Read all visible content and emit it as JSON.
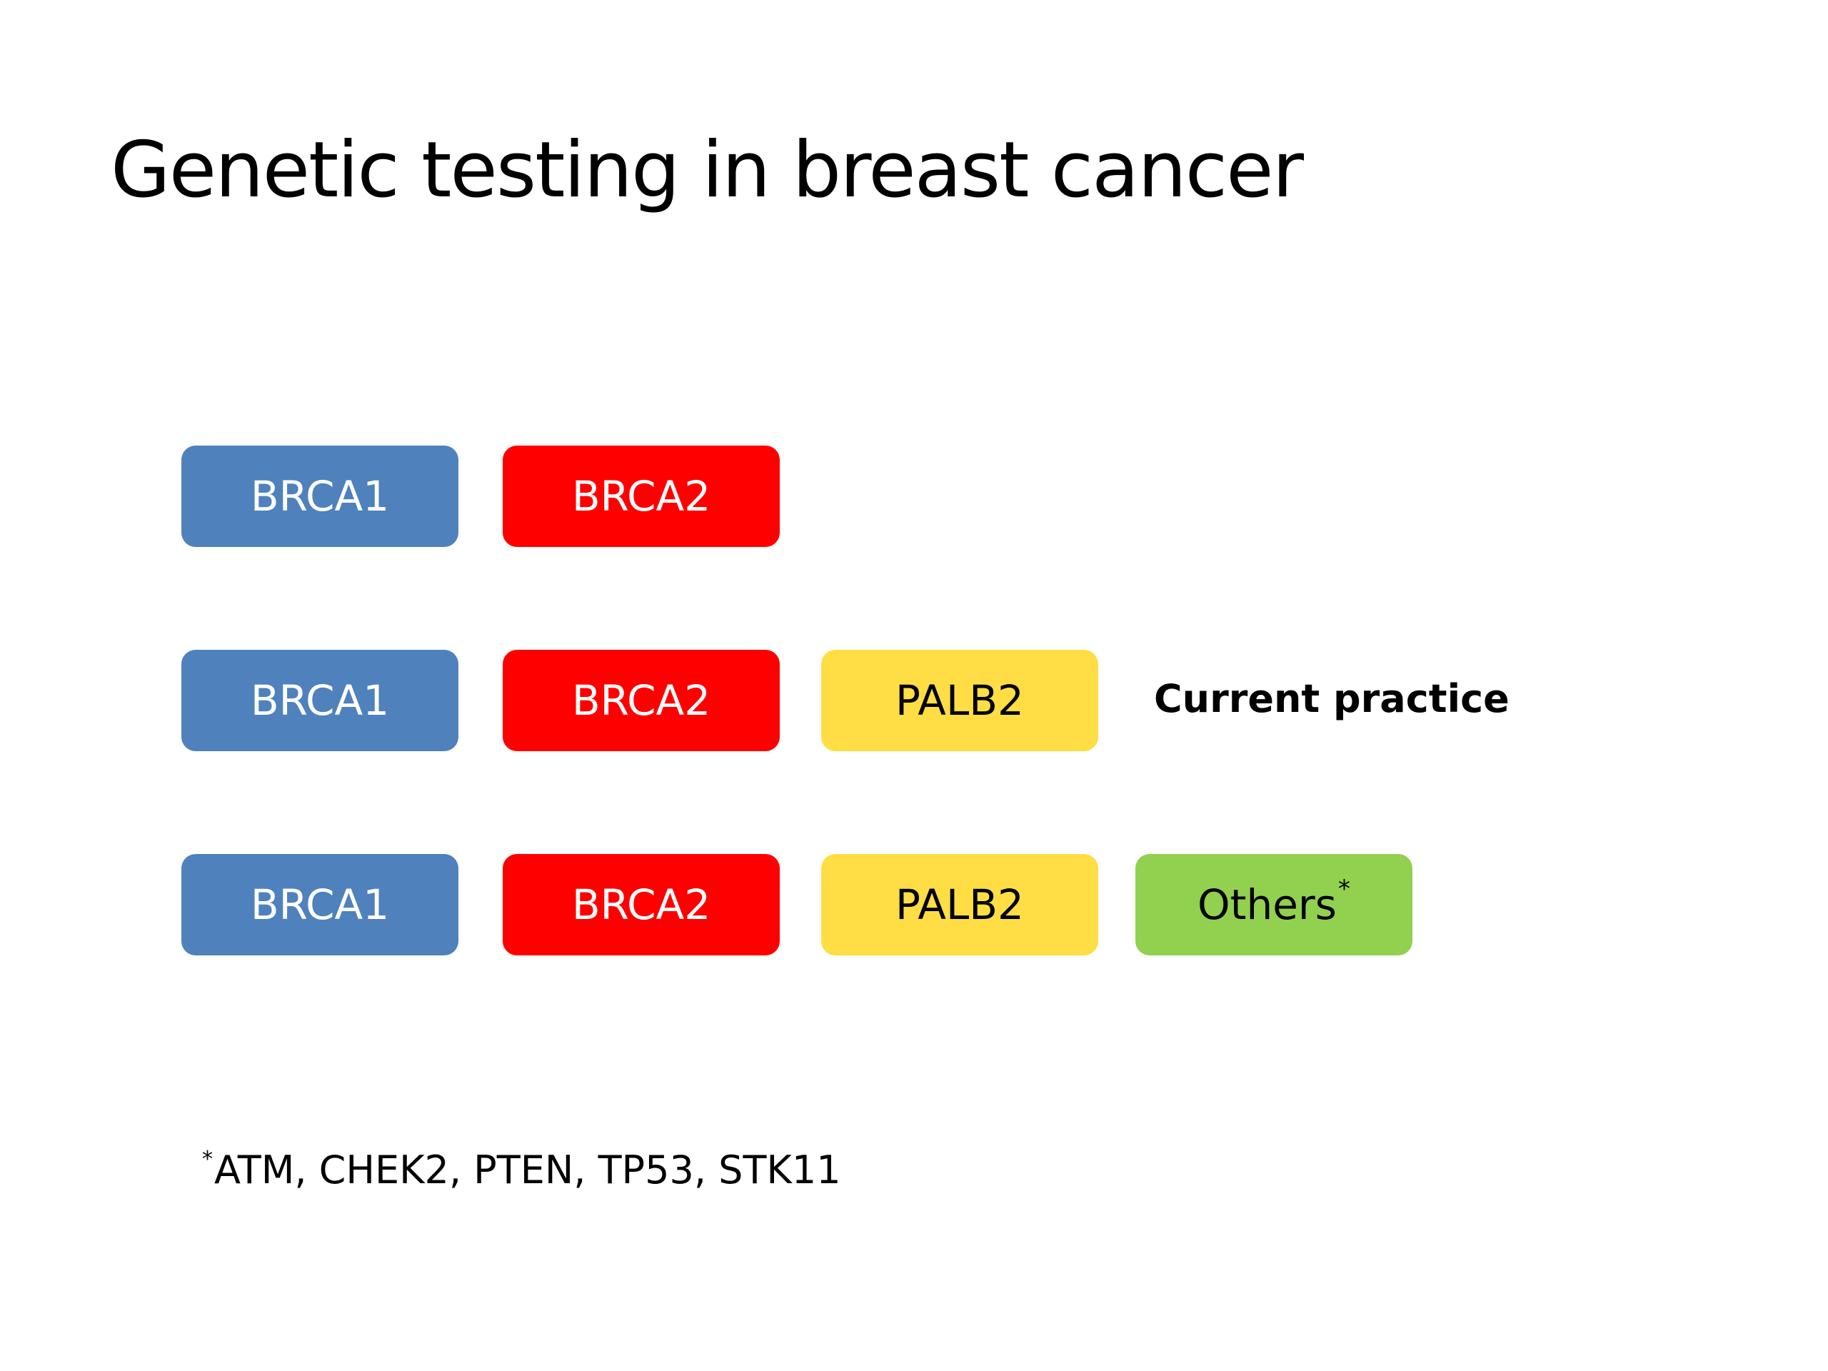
{
  "slide": {
    "title": "Genetic testing in breast cancer"
  },
  "rows": [
    {
      "genes": [
        {
          "label": "BRCA1"
        },
        {
          "label": "BRCA2"
        }
      ]
    },
    {
      "genes": [
        {
          "label": "BRCA1"
        },
        {
          "label": "BRCA2"
        },
        {
          "label": "PALB2"
        }
      ],
      "note": "Current practice"
    },
    {
      "genes": [
        {
          "label": "BRCA1"
        },
        {
          "label": "BRCA2"
        },
        {
          "label": "PALB2"
        },
        {
          "label": "Others",
          "marker": "*"
        }
      ]
    }
  ],
  "footnote": {
    "marker": "*",
    "text": "ATM, CHEK2, PTEN, TP53, STK11"
  },
  "colors": {
    "brca1": "#4f81bd",
    "brca2": "#ff0000",
    "palb2": "#ffdd44",
    "others": "#92d050"
  }
}
